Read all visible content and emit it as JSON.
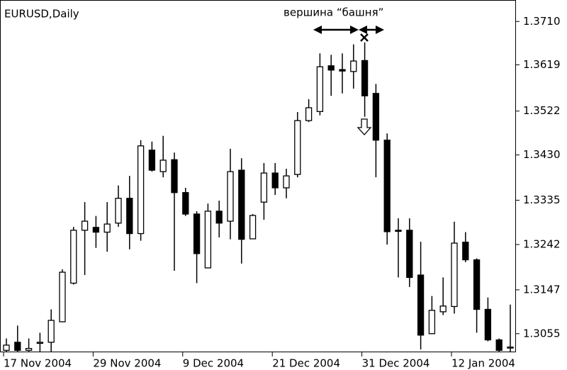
{
  "chart_data": {
    "type": "candlestick",
    "title": "EURUSD,Daily",
    "annotation": "вершина “башня”",
    "categories": [
      "17 Nov 2004",
      null,
      null,
      null,
      null,
      null,
      null,
      null,
      "29 Nov 2004",
      null,
      null,
      null,
      null,
      null,
      null,
      null,
      "9 Dec 2004",
      null,
      null,
      null,
      null,
      null,
      null,
      null,
      "21 Dec 2004",
      null,
      null,
      null,
      null,
      null,
      null,
      null,
      "31 Dec 2004",
      null,
      null,
      null,
      null,
      null,
      null,
      null,
      "12 Jan 2004",
      null,
      null,
      null,
      null,
      null
    ],
    "open": [
      1.302,
      1.3037,
      1.302,
      1.3036,
      1.3037,
      1.308,
      1.3161,
      1.3272,
      1.3278,
      1.3268,
      1.3287,
      1.3339,
      1.3265,
      1.344,
      1.3395,
      1.342,
      1.3351,
      1.3306,
      1.3193,
      1.3312,
      1.3291,
      1.3398,
      1.3254,
      1.3331,
      1.3392,
      1.3361,
      1.3389,
      1.3502,
      1.3521,
      1.3617,
      1.3609,
      1.3605,
      1.3628,
      1.3559,
      1.3461,
      1.3272,
      1.3272,
      1.3178,
      1.3055,
      1.3101,
      1.3112,
      1.3247,
      1.321,
      1.3106,
      1.3042,
      1.3027
    ],
    "high": [
      1.3045,
      1.3072,
      1.3045,
      1.3057,
      1.3106,
      1.319,
      1.3279,
      1.3331,
      1.3302,
      1.3331,
      1.3366,
      1.3386,
      1.3461,
      1.3458,
      1.347,
      1.3435,
      1.3361,
      1.3312,
      1.3328,
      1.3334,
      1.3443,
      1.3423,
      1.3306,
      1.3413,
      1.3413,
      1.3401,
      1.352,
      1.3547,
      1.3643,
      1.364,
      1.3643,
      1.3662,
      1.3666,
      1.3579,
      1.3475,
      1.3297,
      1.3297,
      1.3248,
      1.3134,
      1.3173,
      1.329,
      1.3268,
      1.3213,
      1.3131,
      1.3045,
      1.3116
    ],
    "low": [
      1.3017,
      1.3017,
      1.3017,
      1.3017,
      1.3017,
      1.3079,
      1.3158,
      1.3178,
      1.3235,
      1.3227,
      1.3279,
      1.3232,
      1.325,
      1.3395,
      1.3383,
      1.3187,
      1.3302,
      1.3161,
      1.3193,
      1.3257,
      1.3253,
      1.3202,
      1.3254,
      1.3294,
      1.3346,
      1.3339,
      1.3383,
      1.3499,
      1.3513,
      1.3554,
      1.3559,
      1.3569,
      1.351,
      1.3383,
      1.3242,
      1.3173,
      1.3153,
      1.3022,
      1.3054,
      1.3094,
      1.3097,
      1.3205,
      1.3057,
      1.3039,
      1.3017,
      1.3017
    ],
    "close": [
      1.3031,
      1.302,
      1.3024,
      1.3037,
      1.3083,
      1.3184,
      1.3272,
      1.3291,
      1.3268,
      1.3285,
      1.3339,
      1.3265,
      1.3449,
      1.3398,
      1.3419,
      1.3351,
      1.3306,
      1.3223,
      1.3312,
      1.3287,
      1.3395,
      1.3253,
      1.3303,
      1.3392,
      1.3361,
      1.3386,
      1.3502,
      1.3529,
      1.3615,
      1.3608,
      1.3606,
      1.3627,
      1.3554,
      1.3461,
      1.3269,
      1.3271,
      1.3173,
      1.3052,
      1.3104,
      1.3113,
      1.3245,
      1.321,
      1.3106,
      1.3042,
      1.302,
      1.3027
    ],
    "up_color": "#ffffff",
    "down_color": "#000000",
    "ylim": [
      1.3016,
      1.3755
    ],
    "yticks": [
      1.3055,
      1.3147,
      1.3242,
      1.3335,
      {
        "value": 1.343,
        "label": "1.3430"
      },
      1.3522,
      1.3619,
      {
        "value": 1.371,
        "label": "1.3710"
      }
    ]
  }
}
